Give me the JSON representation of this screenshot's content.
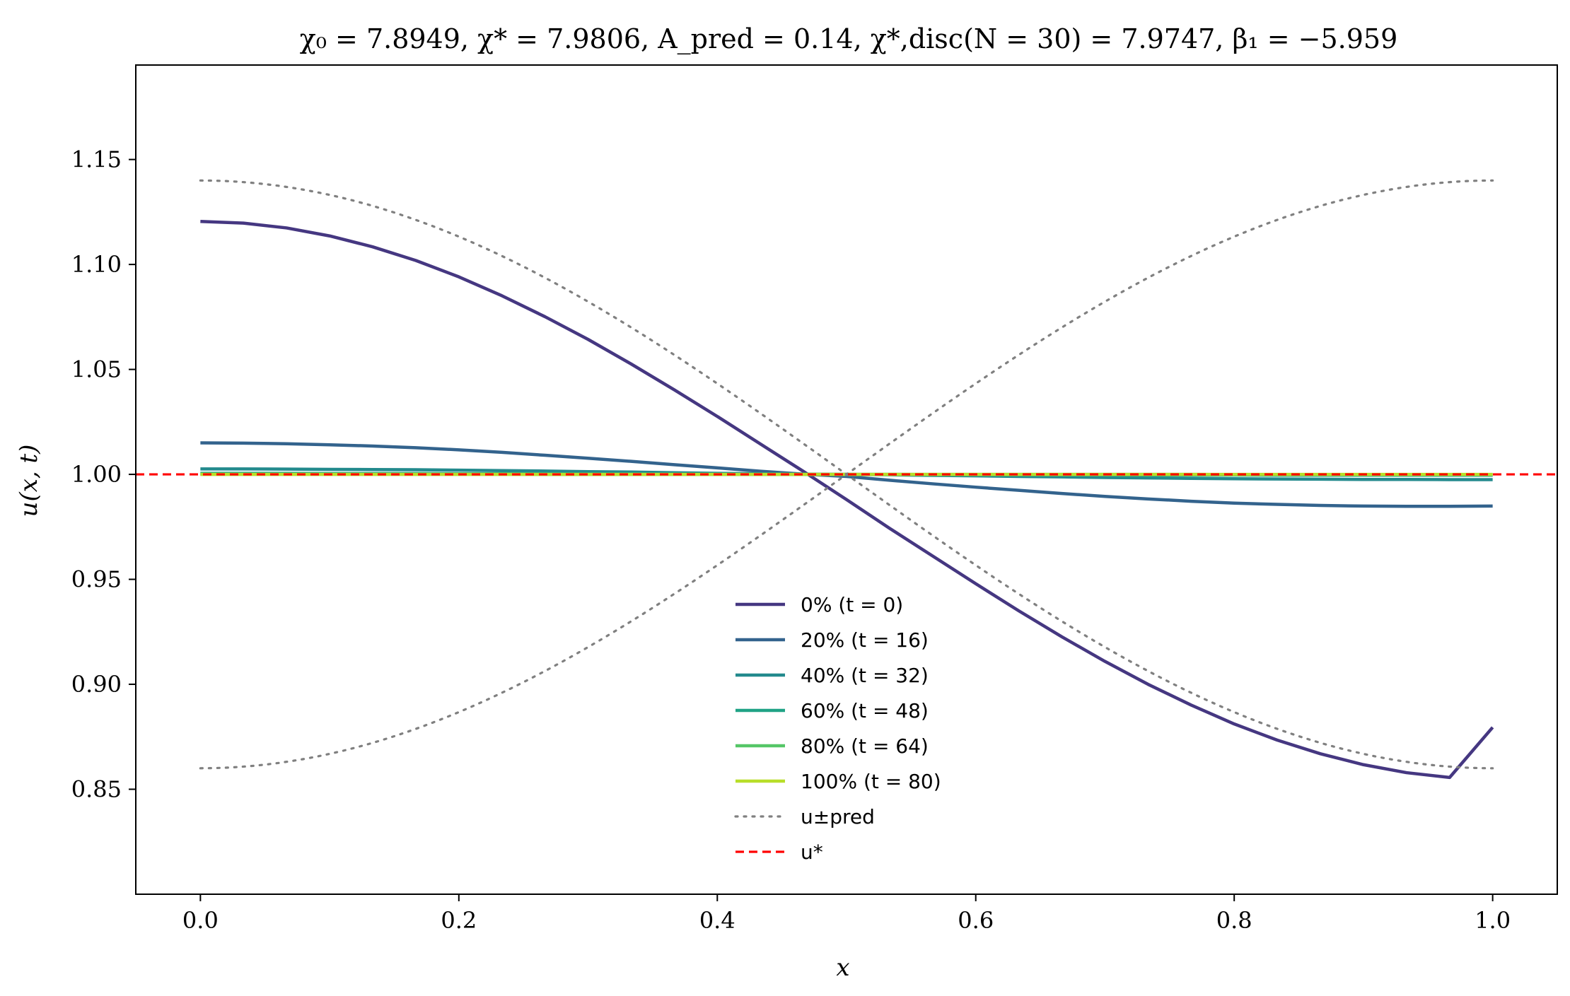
{
  "chart_data": {
    "type": "line",
    "title": "χ₀ = 7.8949,  χ* = 7.9806,  A_pred = 0.14,  χ*,disc(N = 30) = 7.9747,  β₁ = −5.959",
    "xlabel": "x",
    "ylabel": "u(x, t)",
    "xlim": [
      -0.05,
      1.05
    ],
    "ylim": [
      0.8,
      1.195
    ],
    "xticks": [
      0.0,
      0.2,
      0.4,
      0.6,
      0.8,
      1.0
    ],
    "xtick_labels": [
      "0.0",
      "0.2",
      "0.4",
      "0.6",
      "0.8",
      "1.0"
    ],
    "yticks": [
      0.85,
      0.9,
      0.95,
      1.0,
      1.05,
      1.1,
      1.15
    ],
    "ytick_labels": [
      "0.85",
      "0.90",
      "0.95",
      "1.00",
      "1.05",
      "1.10",
      "1.15"
    ],
    "grid": false,
    "legend_position": "lower-center",
    "x": [
      0.0,
      0.0333,
      0.0667,
      0.1,
      0.1333,
      0.1667,
      0.2,
      0.2333,
      0.2667,
      0.3,
      0.3333,
      0.3667,
      0.4,
      0.4333,
      0.4667,
      0.5,
      0.5333,
      0.5667,
      0.6,
      0.6333,
      0.6667,
      0.7,
      0.7333,
      0.7667,
      0.8,
      0.8333,
      0.8667,
      0.9,
      0.9333,
      0.9667,
      1.0
    ],
    "series": [
      {
        "name": "0% (t = 0)",
        "color": "#453781",
        "style": "solid",
        "values": [
          1.1205,
          1.1197,
          1.1174,
          1.1136,
          1.1084,
          1.1019,
          1.0941,
          1.0851,
          1.0751,
          1.0643,
          1.0526,
          1.0403,
          1.0276,
          1.0145,
          1.0014,
          0.988,
          0.9743,
          0.9611,
          0.9479,
          0.935,
          0.9226,
          0.9109,
          0.9,
          0.8901,
          0.8811,
          0.8734,
          0.8669,
          0.8617,
          0.8579,
          0.8556,
          0.8795
        ]
      },
      {
        "name": "20% (t = 16)",
        "color": "#33638d",
        "style": "solid",
        "values": [
          1.015,
          1.0149,
          1.0146,
          1.0141,
          1.0135,
          1.0127,
          1.0117,
          1.0105,
          1.0091,
          1.0077,
          1.0062,
          1.0046,
          1.0031,
          1.0015,
          1.0001,
          0.999,
          0.9972,
          0.9955,
          0.9939,
          0.9924,
          0.9909,
          0.9895,
          0.9883,
          0.9872,
          0.9863,
          0.9857,
          0.9852,
          0.9849,
          0.9848,
          0.9848,
          0.9849
        ]
      },
      {
        "name": "40% (t = 32)",
        "color": "#238a8d",
        "style": "solid",
        "values": [
          1.0026,
          1.0026,
          1.0025,
          1.0024,
          1.0023,
          1.0022,
          1.002,
          1.0018,
          1.0016,
          1.0013,
          1.0011,
          1.0008,
          1.0005,
          1.0003,
          1.0001,
          1.0,
          0.9998,
          0.9995,
          0.9993,
          0.999,
          0.9988,
          0.9985,
          0.9983,
          0.9981,
          0.9979,
          0.9978,
          0.9977,
          0.9976,
          0.9976,
          0.9975,
          0.9975
        ]
      },
      {
        "name": "60% (t = 48)",
        "color": "#20a386",
        "style": "solid",
        "values": [
          1.0005,
          1.0005,
          1.0005,
          1.0004,
          1.0004,
          1.0004,
          1.0003,
          1.0003,
          1.0003,
          1.0002,
          1.0002,
          1.0001,
          1.0001,
          1.0,
          1.0,
          1.0,
          1.0,
          0.9999,
          0.9999,
          0.9998,
          0.9998,
          0.9998,
          0.9997,
          0.9997,
          0.9997,
          0.9996,
          0.9996,
          0.9996,
          0.9996,
          0.9996,
          0.9996
        ]
      },
      {
        "name": "80% (t = 64)",
        "color": "#55c667",
        "style": "solid",
        "values": [
          1.0001,
          1.0001,
          1.0001,
          1.0001,
          1.0001,
          1.0001,
          1.0001,
          1.0001,
          1.0,
          1.0,
          1.0,
          1.0,
          1.0,
          1.0,
          1.0,
          1.0,
          1.0,
          1.0,
          1.0,
          1.0,
          1.0,
          1.0,
          1.0,
          1.0,
          0.9999,
          0.9999,
          0.9999,
          0.9999,
          0.9999,
          0.9999,
          0.9999
        ]
      },
      {
        "name": "100% (t = 80)",
        "color": "#b8de29",
        "style": "solid",
        "values": [
          1.0,
          1.0,
          1.0,
          1.0,
          1.0,
          1.0,
          1.0,
          1.0,
          1.0,
          1.0,
          1.0,
          1.0,
          1.0,
          1.0,
          1.0,
          1.0,
          1.0,
          1.0,
          1.0,
          1.0,
          1.0,
          1.0,
          1.0,
          1.0,
          1.0,
          1.0,
          1.0,
          1.0,
          1.0,
          1.0,
          1.0
        ]
      },
      {
        "name": "u±pred",
        "color": "#808080",
        "style": "dotted",
        "func": "1 + 0.14*cos(pi*x)"
      },
      {
        "name": "u±pred",
        "color": "#808080",
        "style": "dotted",
        "func": "1 - 0.14*cos(pi*x)",
        "legend": false
      },
      {
        "name": "u*",
        "color": "#ff0000",
        "style": "dashed",
        "hline": 1.0
      }
    ]
  }
}
